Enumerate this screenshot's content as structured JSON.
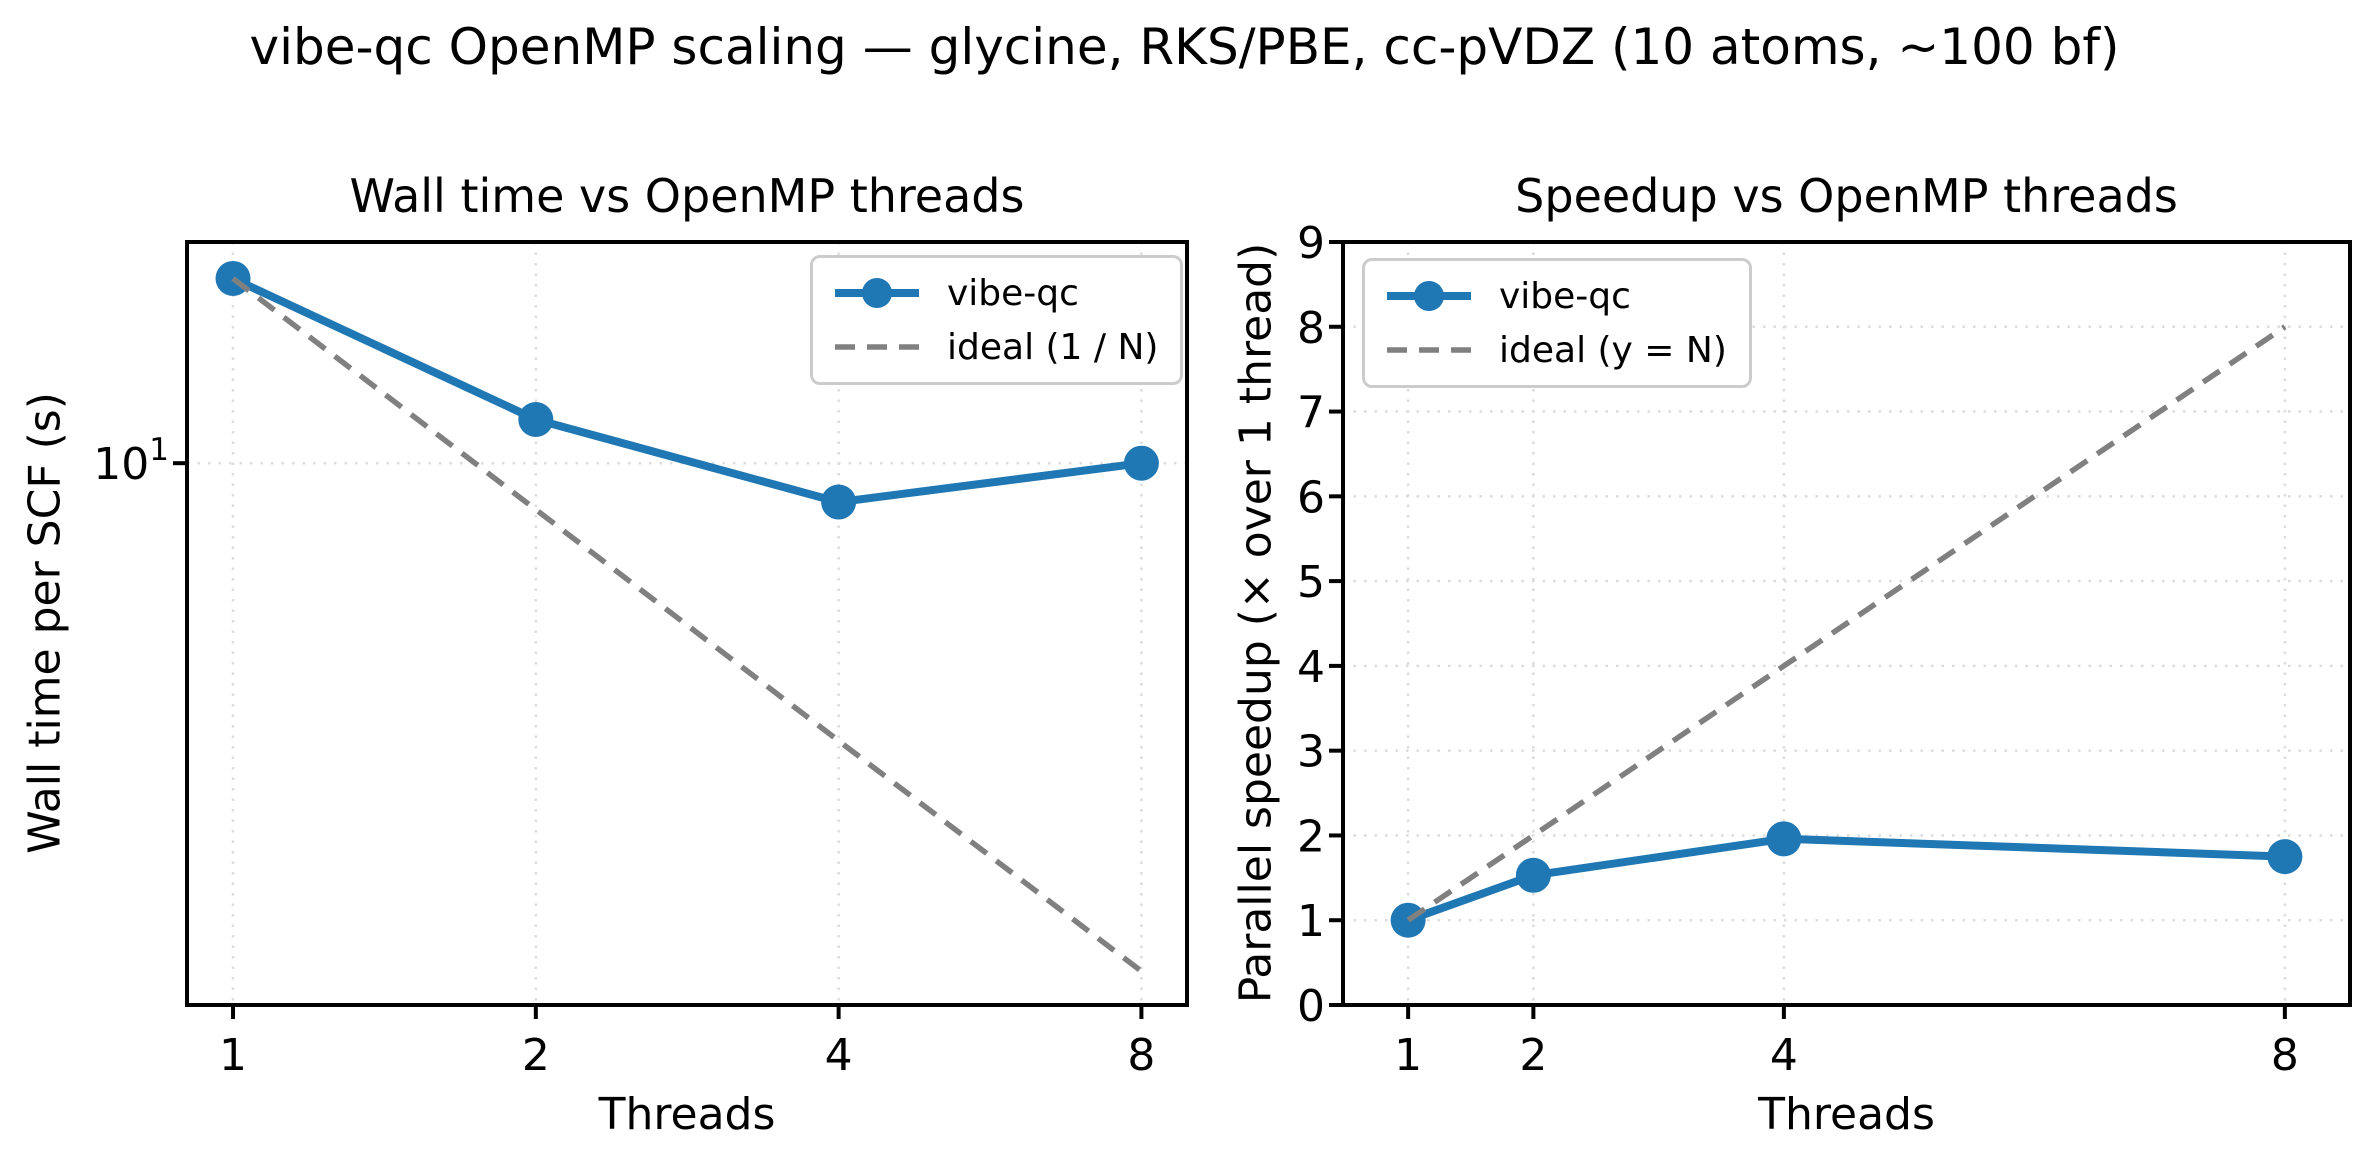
{
  "figure": {
    "suptitle": "vibe-qc OpenMP scaling — glycine, RKS/PBE, cc-pVDZ (10 atoms, ~100 bf)"
  },
  "colors": {
    "series_blue": "#1f77b4",
    "ideal_gray": "#808080",
    "gridline": "#dcdcdc",
    "axes_black": "#000000",
    "legend_border": "#cccccc",
    "background": "#ffffff"
  },
  "chart_data": [
    {
      "type": "line",
      "title": "Wall time vs OpenMP threads",
      "xlabel": "Threads",
      "ylabel": "Wall time per SCF (s)",
      "x": [
        1,
        2,
        4,
        8
      ],
      "xscale": "log2",
      "yscale": "log10",
      "xlim": [
        0.9,
        8.88
      ],
      "ylim": [
        1.97,
        19.41
      ],
      "xticks": [
        1,
        2,
        4,
        8
      ],
      "xtick_labels": [
        "1",
        "2",
        "4",
        "8"
      ],
      "yticks": [
        {
          "value": 10,
          "mantissa": "10",
          "exponent": "1",
          "gridline": true
        }
      ],
      "grid": true,
      "legend_position": "upper right",
      "series": [
        {
          "name": "vibe-qc",
          "values": [
            17.4,
            11.4,
            8.9,
            10.0
          ],
          "color_key": "series_blue",
          "line": "solid",
          "markers": true
        },
        {
          "name": "ideal (1 / N)",
          "values": [
            17.4,
            8.7,
            4.35,
            2.18
          ],
          "color_key": "ideal_gray",
          "line": "dashed",
          "markers": false
        }
      ]
    },
    {
      "type": "line",
      "title": "Speedup vs OpenMP threads",
      "xlabel": "Threads",
      "ylabel": "Parallel speedup (× over 1 thread)",
      "x": [
        1,
        2,
        4,
        8
      ],
      "xscale": "linear",
      "yscale": "linear",
      "xlim": [
        0.48,
        8.52
      ],
      "ylim": [
        0,
        9
      ],
      "xticks": [
        1,
        2,
        4,
        8
      ],
      "xtick_labels": [
        "1",
        "2",
        "4",
        "8"
      ],
      "yticks": [
        {
          "value": 0,
          "label": "0",
          "gridline": false
        },
        {
          "value": 1,
          "label": "1",
          "gridline": true
        },
        {
          "value": 2,
          "label": "2",
          "gridline": true
        },
        {
          "value": 3,
          "label": "3",
          "gridline": true
        },
        {
          "value": 4,
          "label": "4",
          "gridline": true
        },
        {
          "value": 5,
          "label": "5",
          "gridline": true
        },
        {
          "value": 6,
          "label": "6",
          "gridline": true
        },
        {
          "value": 7,
          "label": "7",
          "gridline": true
        },
        {
          "value": 8,
          "label": "8",
          "gridline": true
        },
        {
          "value": 9,
          "label": "9",
          "gridline": false
        }
      ],
      "grid": true,
      "legend_position": "upper left",
      "series": [
        {
          "name": "vibe-qc",
          "values": [
            1.0,
            1.53,
            1.96,
            1.75
          ],
          "color_key": "series_blue",
          "line": "solid",
          "markers": true
        },
        {
          "name": "ideal (y = N)",
          "values": [
            1,
            2,
            4,
            8
          ],
          "color_key": "ideal_gray",
          "line": "dashed",
          "markers": false
        }
      ]
    }
  ]
}
